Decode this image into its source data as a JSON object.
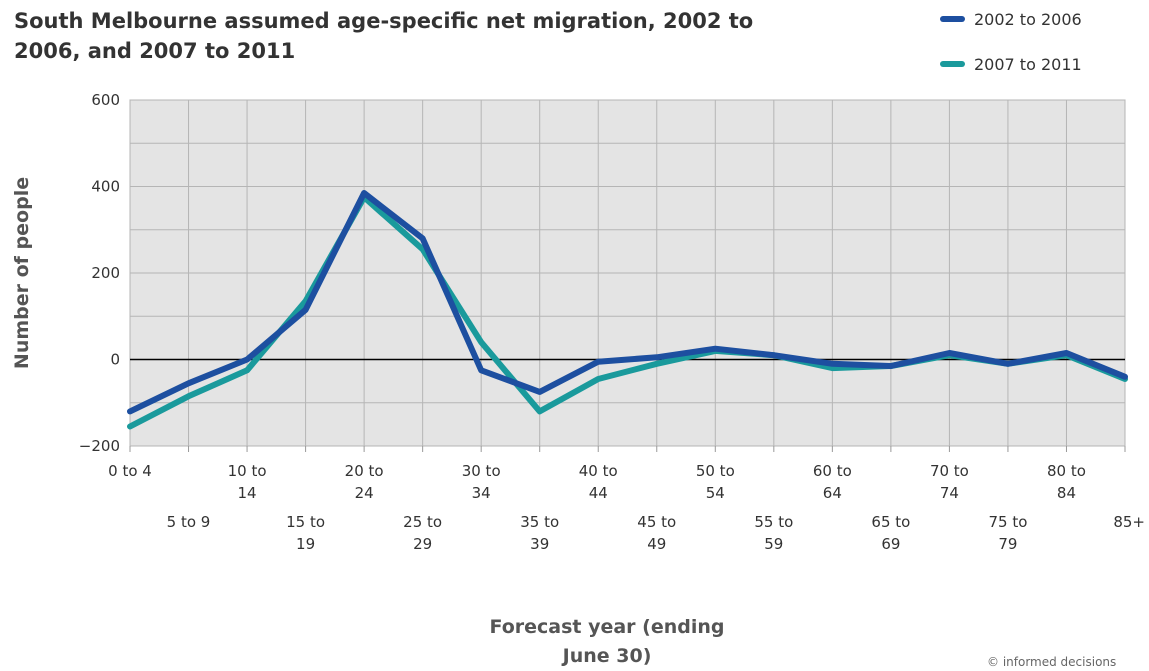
{
  "chart_data": {
    "type": "line",
    "title": "South Melbourne assumed age-specific net migration, 2002 to 2006, and 2007 to 2011",
    "xlabel_lines": [
      "Forecast year (ending",
      "June 30)"
    ],
    "ylabel": "Number of people",
    "ylim": [
      -200,
      600
    ],
    "yticks": [
      "600",
      "400",
      "200",
      "0",
      "−200"
    ],
    "ytick_values": [
      600,
      400,
      200,
      0,
      -200
    ],
    "grid": true,
    "legend_position": "top-right",
    "categories": [
      [
        "0 to 4"
      ],
      [
        "5 to 9"
      ],
      [
        "10 to",
        "14"
      ],
      [
        "15 to",
        "19"
      ],
      [
        "20 to",
        "24"
      ],
      [
        "25 to",
        "29"
      ],
      [
        "30 to",
        "34"
      ],
      [
        "35 to",
        "39"
      ],
      [
        "40 to",
        "44"
      ],
      [
        "45 to",
        "49"
      ],
      [
        "50 to",
        "54"
      ],
      [
        "55 to",
        "59"
      ],
      [
        "60 to",
        "64"
      ],
      [
        "65 to",
        "69"
      ],
      [
        "70 to",
        "74"
      ],
      [
        "75 to",
        "79"
      ],
      [
        "80 to",
        "84"
      ],
      [
        "85+"
      ]
    ],
    "series": [
      {
        "name": "2007 to 2011",
        "color": "#1a9a9c",
        "values": [
          -155,
          -85,
          -25,
          135,
          375,
          255,
          40,
          -120,
          -45,
          -10,
          20,
          10,
          -20,
          -15,
          10,
          -10,
          10,
          -45
        ]
      },
      {
        "name": "2002 to 2006",
        "color": "#1d4fa0",
        "values": [
          -120,
          -55,
          0,
          115,
          385,
          280,
          -25,
          -75,
          -5,
          5,
          25,
          10,
          -10,
          -15,
          15,
          -10,
          15,
          -40
        ]
      }
    ],
    "legend": [
      {
        "name": "2002 to 2006",
        "color": "#1d4fa0"
      },
      {
        "name": "2007 to 2011",
        "color": "#1a9a9c"
      }
    ],
    "credit": "© informed decisions"
  }
}
